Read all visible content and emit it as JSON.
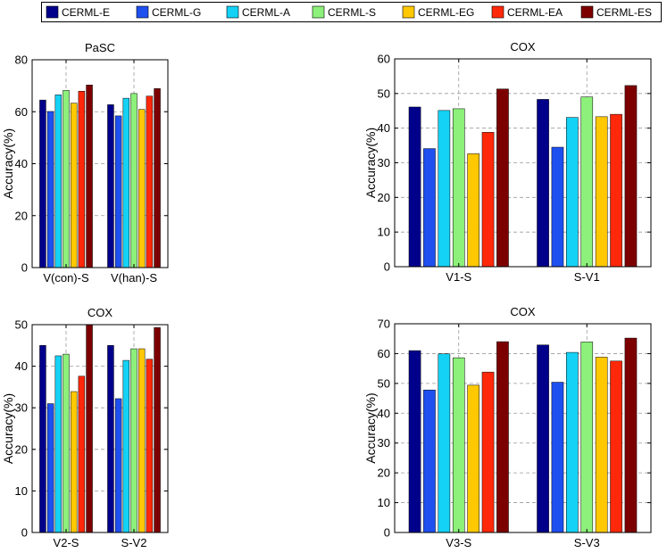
{
  "legend": {
    "placement": "top",
    "entries": [
      {
        "label": "CERML-E",
        "color": "#00008B"
      },
      {
        "label": "CERML-G",
        "color": "#1E50F0"
      },
      {
        "label": "CERML-A",
        "color": "#14D2F5"
      },
      {
        "label": "CERML-S",
        "color": "#8CF07A"
      },
      {
        "label": "CERML-EG",
        "color": "#FFC800"
      },
      {
        "label": "CERML-EA",
        "color": "#FF280A"
      },
      {
        "label": "CERML-ES",
        "color": "#7D0000"
      }
    ]
  },
  "chart_data": [
    {
      "type": "bar",
      "title": "PaSC",
      "xlabel": "",
      "ylabel": "Accuracy(%)",
      "ylim": [
        0,
        80
      ],
      "yticks": [
        0,
        20,
        40,
        60,
        80
      ],
      "grid": true,
      "categories": [
        "V(con)-S",
        "V(han)-S"
      ],
      "series": [
        {
          "name": "CERML-E",
          "values": [
            64.5,
            62.7
          ]
        },
        {
          "name": "CERML-G",
          "values": [
            60.1,
            58.4
          ]
        },
        {
          "name": "CERML-A",
          "values": [
            66.5,
            65.2
          ]
        },
        {
          "name": "CERML-S",
          "values": [
            68.2,
            67.0
          ]
        },
        {
          "name": "CERML-EG",
          "values": [
            63.3,
            60.9
          ]
        },
        {
          "name": "CERML-EA",
          "values": [
            67.9,
            66.0
          ]
        },
        {
          "name": "CERML-ES",
          "values": [
            70.3,
            68.9
          ]
        }
      ]
    },
    {
      "type": "bar",
      "title": "COX",
      "xlabel": "",
      "ylabel": "Accuracy(%)",
      "ylim": [
        0,
        60
      ],
      "yticks": [
        0,
        10,
        20,
        30,
        40,
        50,
        60
      ],
      "grid": true,
      "categories": [
        "V1-S",
        "S-V1"
      ],
      "series": [
        {
          "name": "CERML-E",
          "values": [
            46.1,
            48.3
          ]
        },
        {
          "name": "CERML-G",
          "values": [
            34.1,
            34.5
          ]
        },
        {
          "name": "CERML-A",
          "values": [
            45.1,
            43.1
          ]
        },
        {
          "name": "CERML-S",
          "values": [
            45.6,
            49.0
          ]
        },
        {
          "name": "CERML-EG",
          "values": [
            32.6,
            43.3
          ]
        },
        {
          "name": "CERML-EA",
          "values": [
            38.8,
            44.0
          ]
        },
        {
          "name": "CERML-ES",
          "values": [
            51.3,
            52.3
          ]
        }
      ]
    },
    {
      "type": "bar",
      "title": "COX",
      "xlabel": "",
      "ylabel": "Accuracy(%)",
      "ylim": [
        0,
        50
      ],
      "yticks": [
        0,
        10,
        20,
        30,
        40,
        50
      ],
      "grid": true,
      "categories": [
        "V2-S",
        "S-V2"
      ],
      "series": [
        {
          "name": "CERML-E",
          "values": [
            45.0,
            45.0
          ]
        },
        {
          "name": "CERML-G",
          "values": [
            31.0,
            32.2
          ]
        },
        {
          "name": "CERML-A",
          "values": [
            42.5,
            41.4
          ]
        },
        {
          "name": "CERML-S",
          "values": [
            42.9,
            44.2
          ]
        },
        {
          "name": "CERML-EG",
          "values": [
            33.9,
            44.2
          ]
        },
        {
          "name": "CERML-EA",
          "values": [
            37.6,
            41.7
          ]
        },
        {
          "name": "CERML-ES",
          "values": [
            50.0,
            49.3
          ]
        }
      ]
    },
    {
      "type": "bar",
      "title": "COX",
      "xlabel": "",
      "ylabel": "Accuracy(%)",
      "ylim": [
        0,
        70
      ],
      "yticks": [
        0,
        10,
        20,
        30,
        40,
        50,
        60,
        70
      ],
      "grid": true,
      "categories": [
        "V3-S",
        "S-V3"
      ],
      "series": [
        {
          "name": "CERML-E",
          "values": [
            61.0,
            62.9
          ]
        },
        {
          "name": "CERML-G",
          "values": [
            47.8,
            50.4
          ]
        },
        {
          "name": "CERML-A",
          "values": [
            59.9,
            60.4
          ]
        },
        {
          "name": "CERML-S",
          "values": [
            58.6,
            63.9
          ]
        },
        {
          "name": "CERML-EG",
          "values": [
            49.4,
            58.8
          ]
        },
        {
          "name": "CERML-EA",
          "values": [
            53.8,
            57.5
          ]
        },
        {
          "name": "CERML-ES",
          "values": [
            64.0,
            65.2
          ]
        }
      ]
    }
  ]
}
